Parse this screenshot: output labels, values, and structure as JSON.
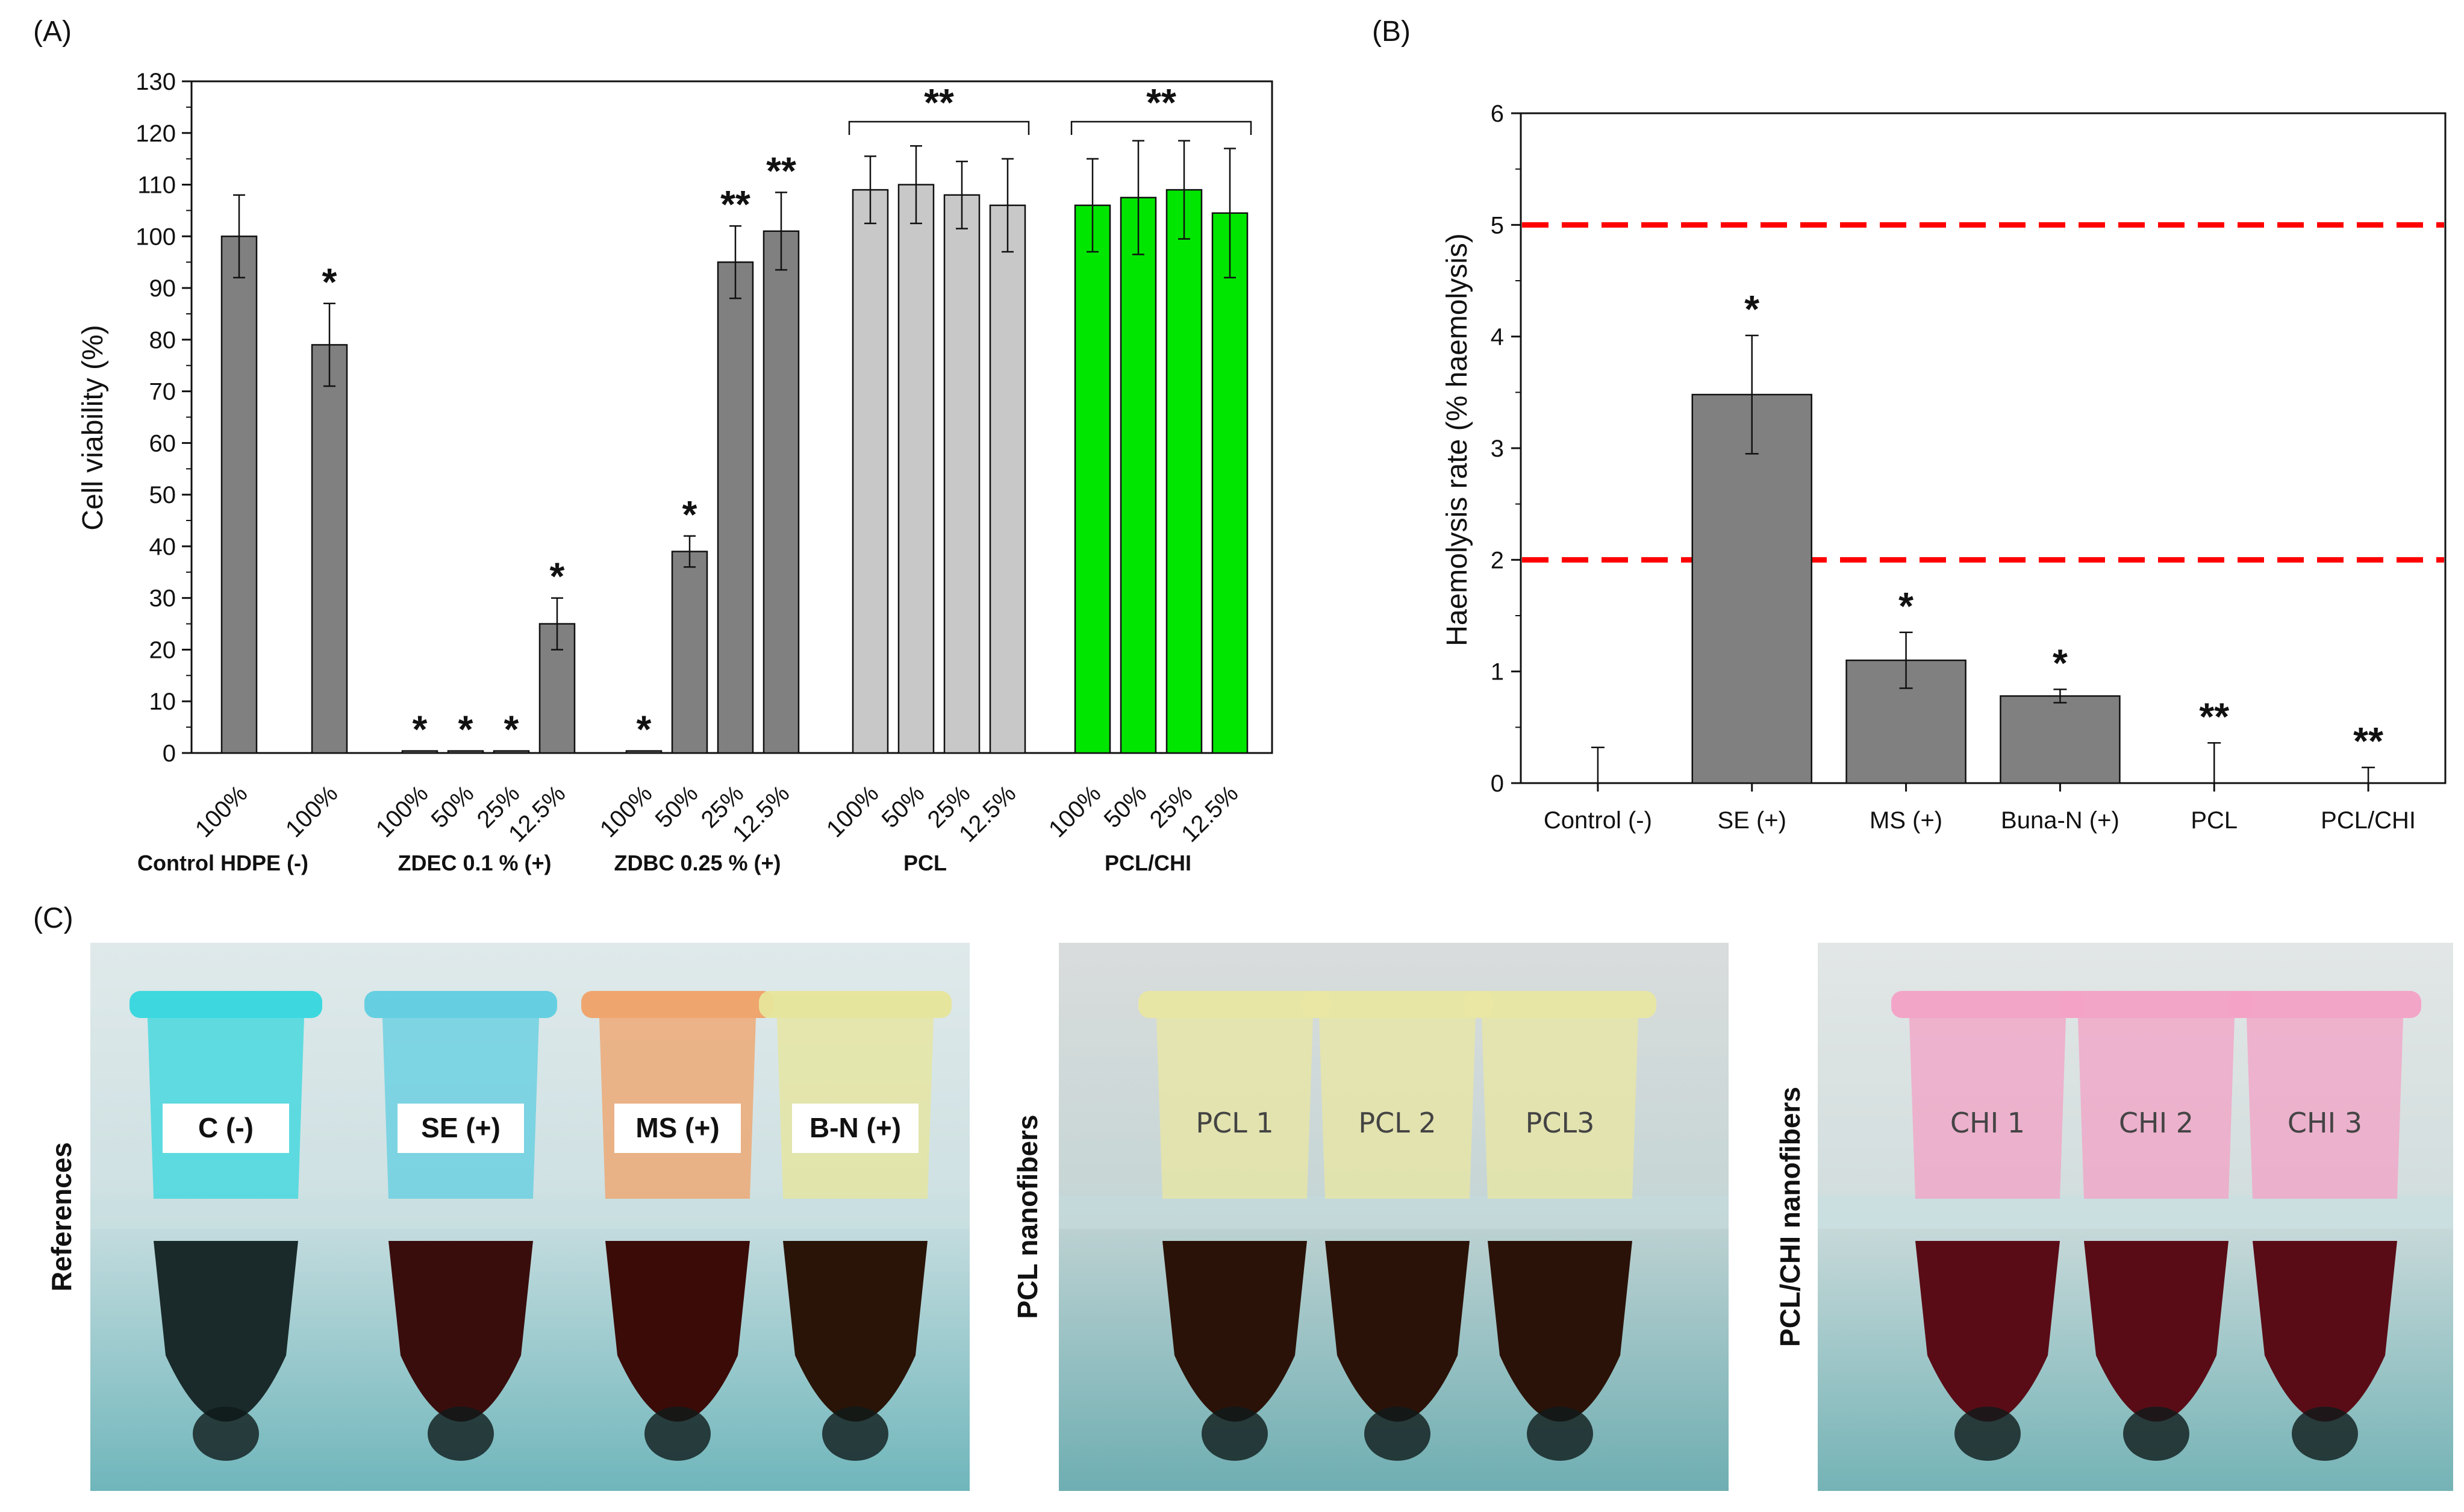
{
  "panels": {
    "a": "(A)",
    "b": "(B)",
    "c": "(C)"
  },
  "chart_data": [
    {
      "type": "bar",
      "ylabel": "Cell viability (%)",
      "xlabel": "",
      "ylim": [
        0,
        130
      ],
      "yticks": [
        0,
        10,
        20,
        30,
        40,
        50,
        60,
        70,
        80,
        90,
        100,
        110,
        120,
        130
      ],
      "grid": false,
      "groups": [
        {
          "name": "Control HDPE (-)",
          "color": "#808080",
          "bars": [
            {
              "label": "100%",
              "value": 100,
              "err": 8,
              "sig": ""
            }
          ]
        },
        {
          "name": "",
          "color": "#808080",
          "bars": [
            {
              "label": "100%",
              "value": 79,
              "err": 8,
              "sig": "*"
            }
          ]
        },
        {
          "name": "ZDEC 0.1 % (+)",
          "color": "#808080",
          "bars": [
            {
              "label": "100%",
              "value": 0.4,
              "err": 0,
              "sig": "*"
            },
            {
              "label": "50%",
              "value": 0.4,
              "err": 0,
              "sig": "*"
            },
            {
              "label": "25%",
              "value": 0.4,
              "err": 0,
              "sig": "*"
            },
            {
              "label": "12.5%",
              "value": 25,
              "err": 5,
              "sig": "*"
            }
          ]
        },
        {
          "name": "ZDBC 0.25 % (+)",
          "color": "#808080",
          "bars": [
            {
              "label": "100%",
              "value": 0.4,
              "err": 0,
              "sig": "*"
            },
            {
              "label": "50%",
              "value": 39,
              "err": 3,
              "sig": "*"
            },
            {
              "label": "25%",
              "value": 95,
              "err": 7,
              "sig": "**"
            },
            {
              "label": "12.5%",
              "value": 101,
              "err": 7.5,
              "sig": "**"
            }
          ]
        },
        {
          "name": "PCL",
          "color": "#c8c8c8",
          "bracket_sig": "**",
          "bars": [
            {
              "label": "100%",
              "value": 109,
              "err": 6.5,
              "sig": ""
            },
            {
              "label": "50%",
              "value": 110,
              "err": 7.5,
              "sig": ""
            },
            {
              "label": "25%",
              "value": 108,
              "err": 6.5,
              "sig": ""
            },
            {
              "label": "12.5%",
              "value": 106,
              "err": 9,
              "sig": ""
            }
          ]
        },
        {
          "name": "PCL/CHI",
          "color": "#00e600",
          "bracket_sig": "**",
          "bars": [
            {
              "label": "100%",
              "value": 106,
              "err": 9,
              "sig": ""
            },
            {
              "label": "50%",
              "value": 107.5,
              "err": 11,
              "sig": ""
            },
            {
              "label": "25%",
              "value": 109,
              "err": 9.5,
              "sig": ""
            },
            {
              "label": "12.5%",
              "value": 104.5,
              "err": 12.5,
              "sig": ""
            }
          ]
        }
      ]
    },
    {
      "type": "bar",
      "ylabel": "Haemolysis rate (% haemolysis)",
      "xlabel": "",
      "ylim": [
        0,
        6
      ],
      "yticks": [
        0,
        1,
        2,
        3,
        4,
        5,
        6
      ],
      "grid": false,
      "thresholds": [
        2,
        5
      ],
      "threshold_color": "#ff0000",
      "bar_color": "#808080",
      "categories": [
        "Control (-)",
        "SE (+)",
        "MS (+)",
        "Buna-N (+)",
        "PCL",
        "PCL/CHI"
      ],
      "values": [
        0,
        3.48,
        1.1,
        0.78,
        0,
        0
      ],
      "errors": [
        0.32,
        0.53,
        0.25,
        0.06,
        0.36,
        0.14
      ],
      "sig": [
        "",
        "*",
        "*",
        "*",
        "**",
        "**"
      ]
    }
  ],
  "photos": {
    "references": {
      "label": "References",
      "tubes": [
        "C (-)",
        "SE (+)",
        "MS (+)",
        "B-N (+)"
      ],
      "cap_colors": [
        "#35d7de",
        "#5fcde0",
        "#f0a167",
        "#e7e59a"
      ],
      "blood_colors": [
        "#1a2a2a",
        "#3a0d0d",
        "#3b0b08",
        "#2a1408"
      ]
    },
    "pcl": {
      "label": "PCL nanofibers",
      "tubes": [
        "PCL 1",
        "PCL 2",
        "PCL3"
      ],
      "cap_color": "#e9e7a2",
      "blood_color": "#2b1208"
    },
    "pclchi": {
      "label": "PCL/CHI nanofibers",
      "tubes": [
        "CHI 1",
        "CHI 2",
        "CHI 3"
      ],
      "cap_color": "#f3a1c6",
      "blood_color": "#5a0c16"
    }
  }
}
